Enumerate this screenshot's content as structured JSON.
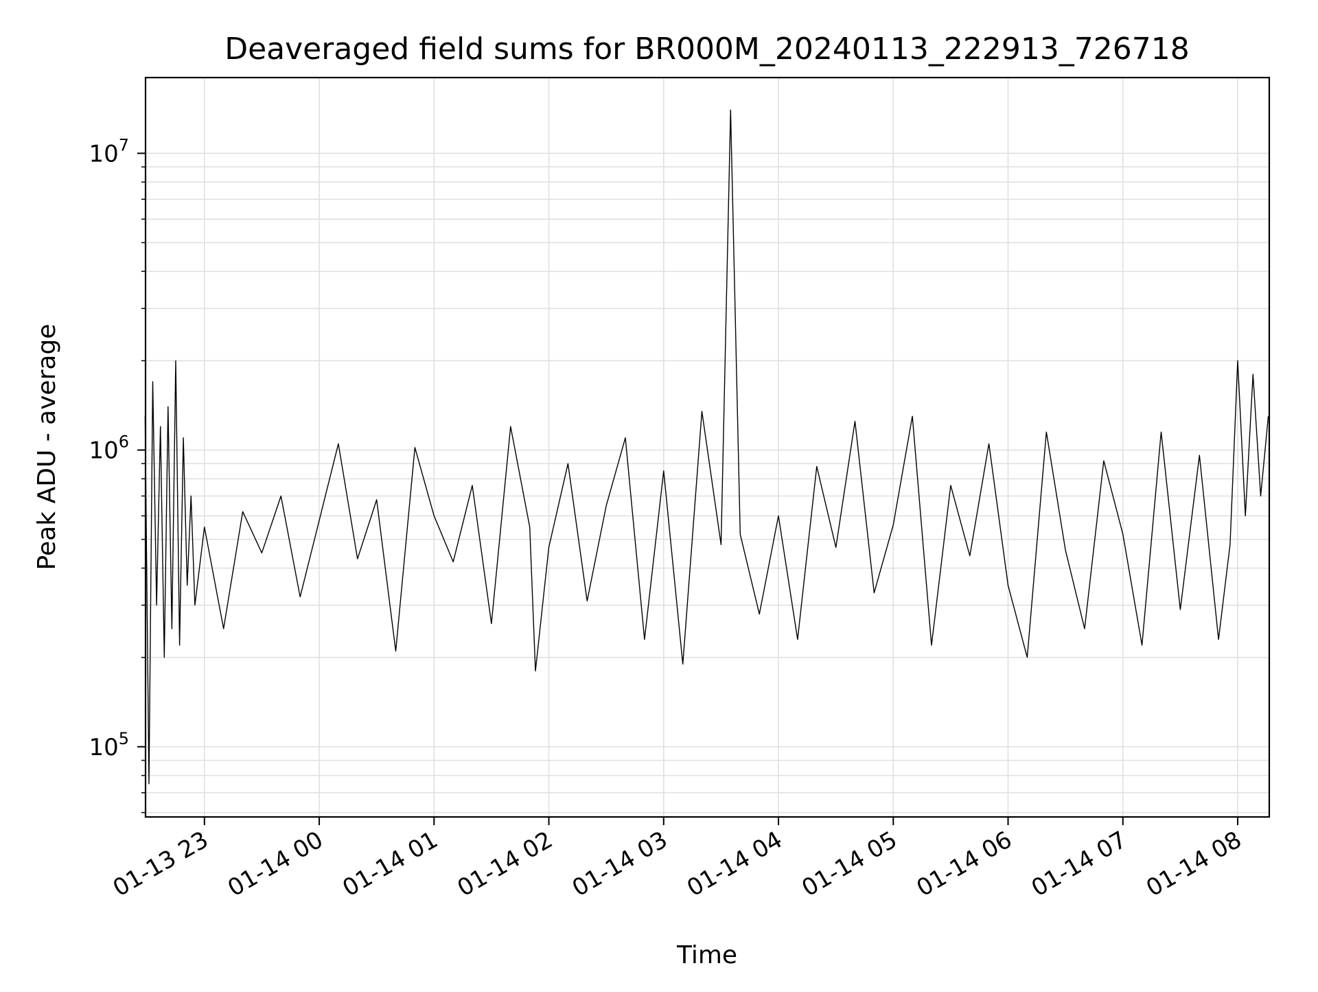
{
  "chart_data": {
    "type": "line",
    "title": "Deaveraged field sums for BR000M_20240113_222913_726718",
    "xlabel": "Time",
    "ylabel": "Peak ADU - average",
    "yscale": "log",
    "ylim": [
      58000,
      18000000
    ],
    "xlim": [
      "2024-01-13 22:29:13",
      "2024-01-14 08:16:30"
    ],
    "grid": true,
    "legend": "none",
    "line_color": "#000000",
    "grid_color": "#e0e0e0",
    "x_ticks": [
      {
        "value": "2024-01-13 23:00",
        "label": "01-13 23"
      },
      {
        "value": "2024-01-14 00:00",
        "label": "01-14 00"
      },
      {
        "value": "2024-01-14 01:00",
        "label": "01-14 01"
      },
      {
        "value": "2024-01-14 02:00",
        "label": "01-14 02"
      },
      {
        "value": "2024-01-14 03:00",
        "label": "01-14 03"
      },
      {
        "value": "2024-01-14 04:00",
        "label": "01-14 04"
      },
      {
        "value": "2024-01-14 05:00",
        "label": "01-14 05"
      },
      {
        "value": "2024-01-14 06:00",
        "label": "01-14 06"
      },
      {
        "value": "2024-01-14 07:00",
        "label": "01-14 07"
      },
      {
        "value": "2024-01-14 08:00",
        "label": "01-14 08"
      }
    ],
    "y_ticks": [
      {
        "value": 100000,
        "base": "10",
        "exp": "5"
      },
      {
        "value": 1000000,
        "base": "10",
        "exp": "6"
      },
      {
        "value": 10000000,
        "base": "10",
        "exp": "7"
      }
    ],
    "series": [
      {
        "x": [
          "2024-01-13 22:29",
          "2024-01-13 22:31",
          "2024-01-13 22:33",
          "2024-01-13 22:35",
          "2024-01-13 22:37",
          "2024-01-13 22:39",
          "2024-01-13 22:41",
          "2024-01-13 22:43",
          "2024-01-13 22:45",
          "2024-01-13 22:47",
          "2024-01-13 22:49",
          "2024-01-13 22:51",
          "2024-01-13 22:53",
          "2024-01-13 22:55",
          "2024-01-13 23:00",
          "2024-01-13 23:10",
          "2024-01-13 23:20",
          "2024-01-13 23:30",
          "2024-01-13 23:40",
          "2024-01-13 23:50",
          "2024-01-14 00:00",
          "2024-01-14 00:10",
          "2024-01-14 00:20",
          "2024-01-14 00:30",
          "2024-01-14 00:40",
          "2024-01-14 00:50",
          "2024-01-14 01:00",
          "2024-01-14 01:10",
          "2024-01-14 01:20",
          "2024-01-14 01:30",
          "2024-01-14 01:40",
          "2024-01-14 01:50",
          "2024-01-14 01:53",
          "2024-01-14 02:00",
          "2024-01-14 02:10",
          "2024-01-14 02:20",
          "2024-01-14 02:30",
          "2024-01-14 02:40",
          "2024-01-14 02:50",
          "2024-01-14 03:00",
          "2024-01-14 03:10",
          "2024-01-14 03:20",
          "2024-01-14 03:30",
          "2024-01-14 03:35",
          "2024-01-14 03:40",
          "2024-01-14 03:50",
          "2024-01-14 04:00",
          "2024-01-14 04:10",
          "2024-01-14 04:20",
          "2024-01-14 04:30",
          "2024-01-14 04:40",
          "2024-01-14 04:50",
          "2024-01-14 05:00",
          "2024-01-14 05:10",
          "2024-01-14 05:20",
          "2024-01-14 05:30",
          "2024-01-14 05:40",
          "2024-01-14 05:50",
          "2024-01-14 06:00",
          "2024-01-14 06:10",
          "2024-01-14 06:20",
          "2024-01-14 06:30",
          "2024-01-14 06:40",
          "2024-01-14 06:50",
          "2024-01-14 07:00",
          "2024-01-14 07:10",
          "2024-01-14 07:20",
          "2024-01-14 07:30",
          "2024-01-14 07:40",
          "2024-01-14 07:50",
          "2024-01-14 07:56",
          "2024-01-14 08:00",
          "2024-01-14 08:04",
          "2024-01-14 08:08",
          "2024-01-14 08:12",
          "2024-01-14 08:16"
        ],
        "y": [
          1300000,
          75000,
          1700000,
          300000,
          1200000,
          200000,
          1400000,
          250000,
          2000000,
          220000,
          1100000,
          350000,
          700000,
          300000,
          550000,
          250000,
          620000,
          450000,
          700000,
          320000,
          580000,
          1050000,
          430000,
          680000,
          210000,
          1020000,
          600000,
          420000,
          760000,
          260000,
          1200000,
          550000,
          180000,
          470000,
          900000,
          310000,
          650000,
          1100000,
          230000,
          850000,
          190000,
          1350000,
          480000,
          14000000,
          520000,
          280000,
          600000,
          230000,
          880000,
          470000,
          1250000,
          330000,
          560000,
          1300000,
          220000,
          760000,
          440000,
          1050000,
          350000,
          200000,
          1150000,
          460000,
          250000,
          920000,
          520000,
          220000,
          1150000,
          290000,
          960000,
          230000,
          480000,
          2000000,
          600000,
          1800000,
          700000,
          1300000
        ]
      }
    ]
  }
}
